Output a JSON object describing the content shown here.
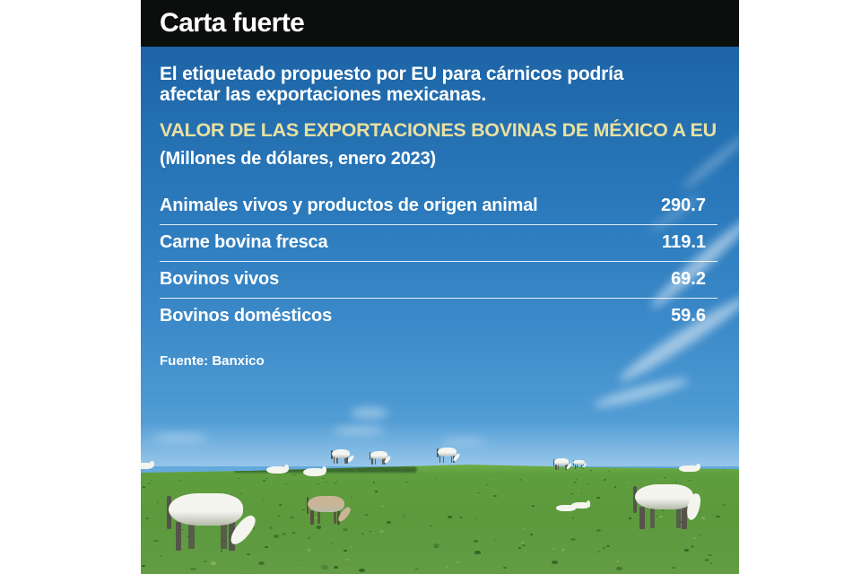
{
  "header": {
    "title": "Carta fuerte"
  },
  "intro": {
    "text": "El etiquetado propuesto por EU para cárnicos podría afectar las exportaciones mexicanas."
  },
  "chart": {
    "title": "VALOR DE LAS EXPORTACIONES BOVINAS DE MÉXICO A EU",
    "subtitle": "(Millones de dólares, enero 2023)",
    "source": "Fuente: Banxico"
  },
  "chart_data": {
    "type": "table",
    "title": "VALOR DE LAS EXPORTACIONES BOVINAS DE MÉXICO A EU",
    "subtitle": "(Millones de dólares, enero 2023)",
    "unit": "Millones de dólares",
    "categories": [
      "Animales vivos y productos de origen animal",
      "Carne bovina fresca",
      "Bovinos vivos",
      "Bovinos domésticos"
    ],
    "values": [
      290.7,
      119.1,
      69.2,
      59.6
    ],
    "source": "Fuente: Banxico"
  },
  "colors": {
    "header_bar": "#0c0e0d",
    "title_text": "#ffffff",
    "accent_yellow": "#e9e0a0",
    "body_text": "#ffffff",
    "sky_top": "#1d64a6",
    "sky_horizon": "#a5d0ef",
    "grass_green": "#5c9a3d",
    "separator_line": "#ffffff"
  }
}
